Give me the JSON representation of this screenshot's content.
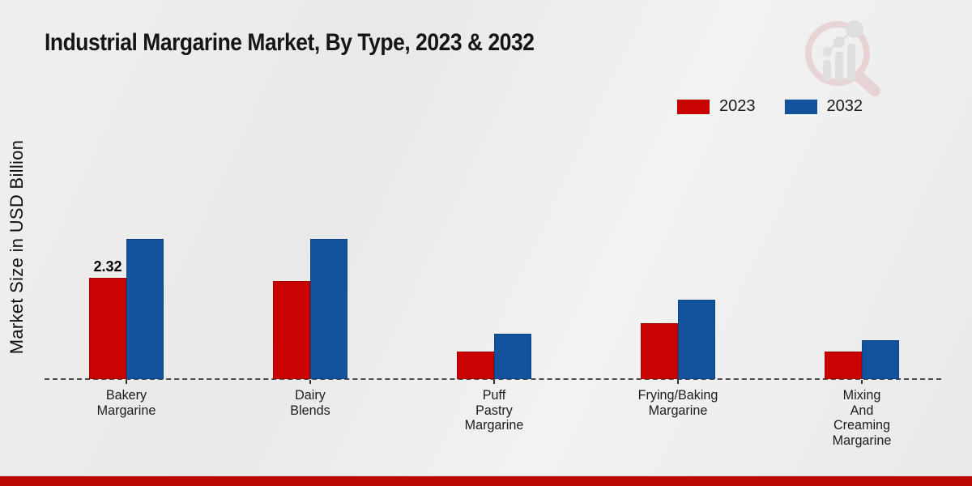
{
  "title": "Industrial Margarine Market, By Type, 2023 & 2032",
  "y_axis_label": "Market Size in USD Billion",
  "legend": [
    {
      "label": "2023",
      "color": "#c90202"
    },
    {
      "label": "2032",
      "color": "#13539d"
    }
  ],
  "colors": {
    "series_2023": "#c90202",
    "series_2032": "#13539d",
    "footer_bar": "#bb0800",
    "baseline": "#4d4d4d",
    "background": "#ececec"
  },
  "watermark_icon": "magnifier-bar-chart-logo",
  "chart_data": {
    "type": "bar",
    "title": "Industrial Margarine Market, By Type, 2023 & 2032",
    "xlabel": "",
    "ylabel": "Market Size in USD Billion",
    "grid": false,
    "legend_position": "top-right",
    "baseline": "dashed",
    "categories": [
      "Bakery\nMargarine",
      "Dairy\nBlends",
      "Puff\nPastry\nMargarine",
      "Frying/Baking\nMargarine",
      "Mixing\nAnd\nCreaming\nMargarine"
    ],
    "series": [
      {
        "name": "2023",
        "color": "#c90202",
        "values": [
          2.32,
          2.25,
          0.63,
          1.28,
          0.63
        ]
      },
      {
        "name": "2032",
        "color": "#13539d",
        "values": [
          3.21,
          3.21,
          1.04,
          1.82,
          0.89
        ]
      }
    ],
    "data_labels": [
      {
        "series": "2023",
        "category_index": 0,
        "text": "2.32"
      }
    ],
    "ylim": [
      0,
      3.6
    ]
  }
}
